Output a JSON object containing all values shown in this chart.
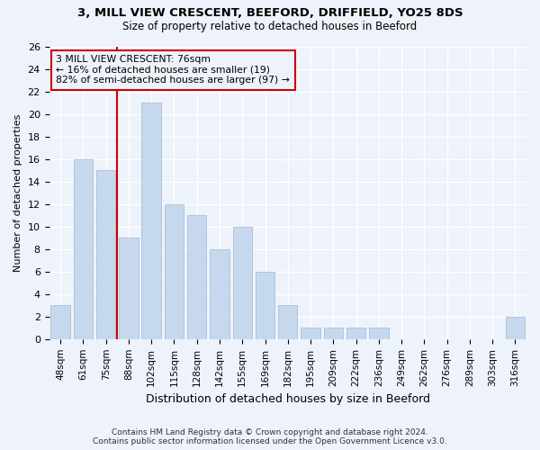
{
  "title1": "3, MILL VIEW CRESCENT, BEEFORD, DRIFFIELD, YO25 8DS",
  "title2": "Size of property relative to detached houses in Beeford",
  "xlabel": "Distribution of detached houses by size in Beeford",
  "ylabel": "Number of detached properties",
  "categories": [
    "48sqm",
    "61sqm",
    "75sqm",
    "88sqm",
    "102sqm",
    "115sqm",
    "128sqm",
    "142sqm",
    "155sqm",
    "169sqm",
    "182sqm",
    "195sqm",
    "209sqm",
    "222sqm",
    "236sqm",
    "249sqm",
    "262sqm",
    "276sqm",
    "289sqm",
    "303sqm",
    "316sqm"
  ],
  "values": [
    3,
    16,
    15,
    9,
    21,
    12,
    11,
    8,
    10,
    6,
    3,
    1,
    1,
    1,
    1,
    0,
    0,
    0,
    0,
    0,
    2
  ],
  "bar_color": "#c5d8ee",
  "bar_edgecolor": "#a8c0d8",
  "subject_line_color": "#cc0000",
  "subject_line_index": 2,
  "annotation_text": "3 MILL VIEW CRESCENT: 76sqm\n← 16% of detached houses are smaller (19)\n82% of semi-detached houses are larger (97) →",
  "annotation_box_edgecolor": "#cc0000",
  "ylim": [
    0,
    26
  ],
  "yticks": [
    0,
    2,
    4,
    6,
    8,
    10,
    12,
    14,
    16,
    18,
    20,
    22,
    24,
    26
  ],
  "background_color": "#eef2fb",
  "grid_color": "#ffffff",
  "footer_line1": "Contains HM Land Registry data © Crown copyright and database right 2024.",
  "footer_line2": "Contains public sector information licensed under the Open Government Licence v3.0."
}
